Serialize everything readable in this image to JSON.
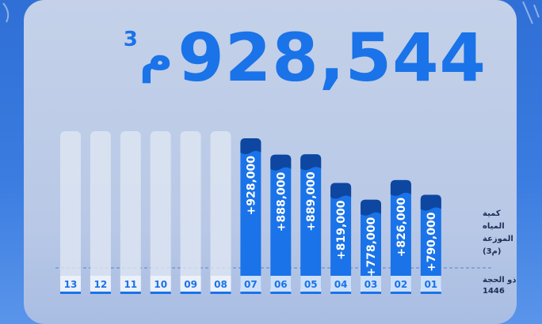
{
  "headline": {
    "value": "928,544",
    "unit": "م",
    "unit_superscript": "3"
  },
  "colors": {
    "accent": "#1a73e8",
    "accent_dark": "#0d47a1",
    "placeholder": "#dfe6f2",
    "card": "#c4d1e9",
    "background": "#2f6fd6"
  },
  "chart_data": {
    "type": "bar",
    "categories": [
      "13",
      "12",
      "11",
      "10",
      "09",
      "08",
      "07",
      "06",
      "05",
      "04",
      "03",
      "02",
      "01"
    ],
    "values": [
      null,
      null,
      null,
      null,
      null,
      null,
      928000,
      888000,
      889000,
      819000,
      778000,
      826000,
      790000
    ],
    "value_labels": [
      "",
      "",
      "",
      "",
      "",
      "",
      "+928,000",
      "+888,000",
      "+889,000",
      "+819,000",
      "+778,000",
      "+826,000",
      "+790,000"
    ],
    "side_label_lines": [
      "كمية",
      "المياه",
      "الموزعة",
      "(م3)"
    ],
    "x_axis_label_lines": [
      "ذو الحجة",
      "1446"
    ]
  }
}
